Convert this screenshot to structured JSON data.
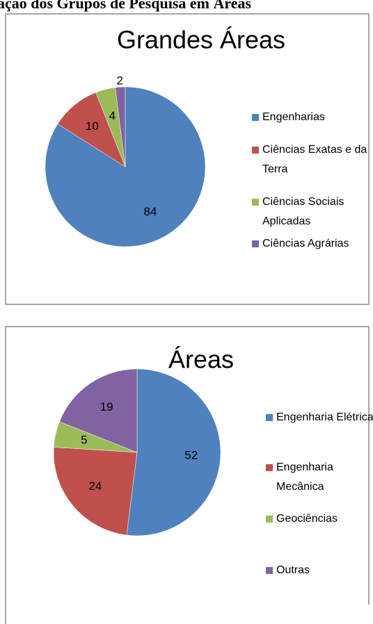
{
  "heading": "ação dos Grupos de Pesquisa em Áreas",
  "chart_data": [
    {
      "type": "pie",
      "title": "Grandes Áreas",
      "categories": [
        "Engenharias",
        "Ciências Exatas e da Terra",
        "Ciências Sociais Aplicadas",
        "Ciências Agrárias"
      ],
      "values": [
        84,
        10,
        4,
        2
      ],
      "colors": [
        "#4f81bd",
        "#c0504d",
        "#9bbb59",
        "#8064a2"
      ],
      "legend": "right"
    },
    {
      "type": "pie",
      "title": "Áreas",
      "categories": [
        "Engenharia Elétrica",
        "Engenharia Mecânica",
        "Geociências",
        "Outras"
      ],
      "values": [
        52,
        24,
        5,
        19
      ],
      "colors": [
        "#4f81bd",
        "#c0504d",
        "#9bbb59",
        "#8064a2"
      ],
      "legend": "right"
    }
  ]
}
